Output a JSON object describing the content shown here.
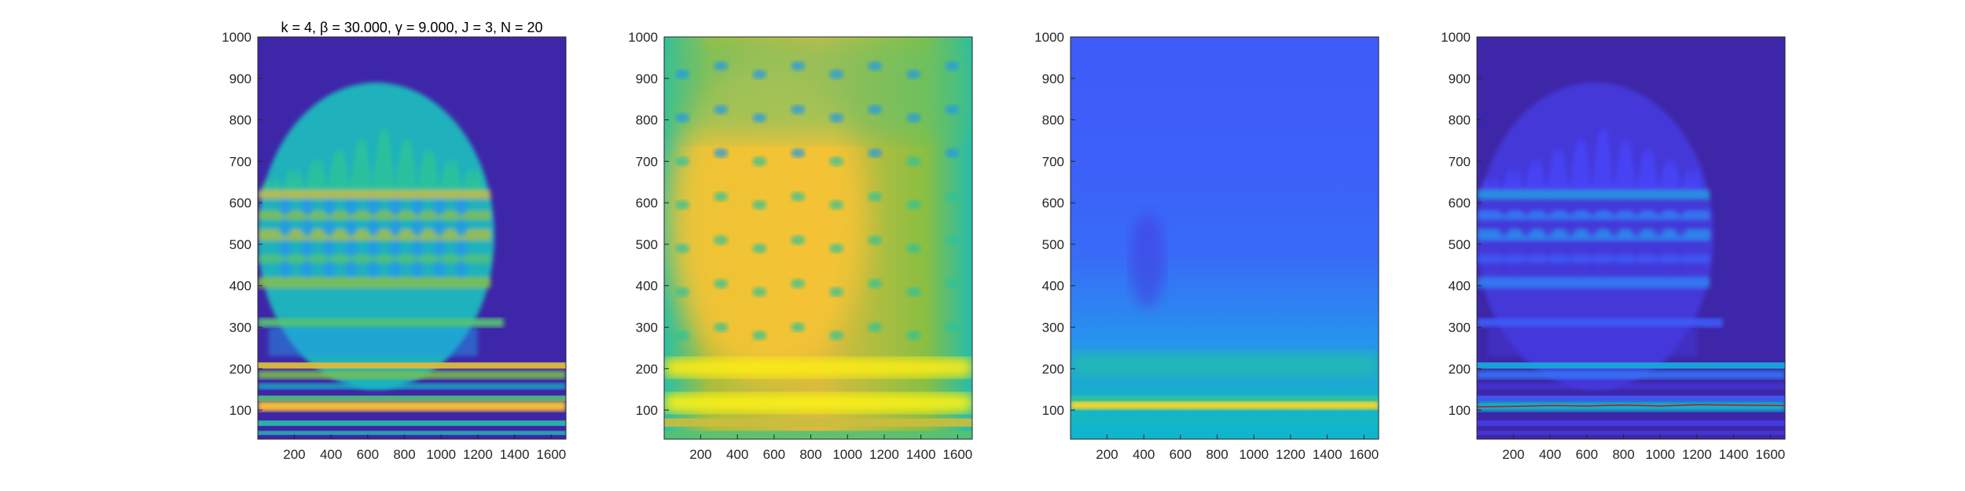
{
  "figure": {
    "colormap": [
      "#3e26a8",
      "#4743f8",
      "#2e87f7",
      "#0fb3d0",
      "#2ec29a",
      "#8cbf3f",
      "#f5ba3d",
      "#fce21c",
      "#f9fb0e"
    ],
    "axis_color": "#262626",
    "ridge_color": "#c0151d"
  },
  "chart_data": [
    {
      "type": "heatmap",
      "panel": "panel-1",
      "title": "k = 4, β = 30.000, γ = 9.000, J = 3, N = 20",
      "xlim": [
        1,
        1680
      ],
      "ylim": [
        30,
        1000
      ],
      "xticks": [
        200,
        400,
        600,
        800,
        1000,
        1200,
        1400,
        1600
      ],
      "yticks": [
        100,
        200,
        300,
        400,
        500,
        600,
        700,
        800,
        900,
        1000
      ],
      "xlabel": "",
      "ylabel": "",
      "background_level": 0.0
    },
    {
      "type": "heatmap",
      "panel": "panel-2",
      "title": "",
      "xlim": [
        1,
        1680
      ],
      "ylim": [
        30,
        1000
      ],
      "xticks": [
        200,
        400,
        600,
        800,
        1000,
        1200,
        1400,
        1600
      ],
      "yticks": [
        100,
        200,
        300,
        400,
        500,
        600,
        700,
        800,
        900,
        1000
      ],
      "xlabel": "",
      "ylabel": "",
      "background_level": 0.42
    },
    {
      "type": "heatmap",
      "panel": "panel-3",
      "title": "",
      "xlim": [
        1,
        1680
      ],
      "ylim": [
        30,
        1000
      ],
      "xticks": [
        200,
        400,
        600,
        800,
        1000,
        1200,
        1400,
        1600
      ],
      "yticks": [
        100,
        200,
        300,
        400,
        500,
        600,
        700,
        800,
        900,
        1000
      ],
      "xlabel": "",
      "ylabel": "",
      "background_level": 0.2
    },
    {
      "type": "heatmap",
      "panel": "panel-4",
      "title": "",
      "xlim": [
        1,
        1680
      ],
      "ylim": [
        30,
        1000
      ],
      "xticks": [
        200,
        400,
        600,
        800,
        1000,
        1200,
        1400,
        1600
      ],
      "yticks": [
        100,
        200,
        300,
        400,
        500,
        600,
        700,
        800,
        900,
        1000
      ],
      "xlabel": "",
      "ylabel": "",
      "background_level": 0.0,
      "ridge_curve": {
        "x": [
          1,
          200,
          400,
          600,
          800,
          1000,
          1200,
          1400,
          1680
        ],
        "y": [
          108,
          109,
          111,
          110,
          112,
          110,
          113,
          112,
          111
        ]
      }
    }
  ]
}
